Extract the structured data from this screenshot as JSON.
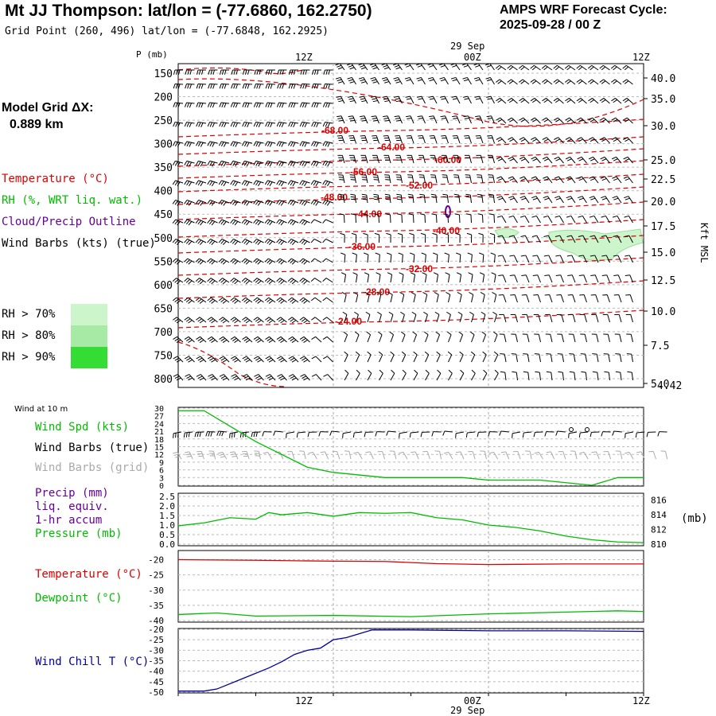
{
  "header": {
    "title": "Mt JJ Thompson:  lat/lon = (-77.6860, 162.2750)",
    "grid_point": "Grid Point (260, 496) lat/lon = (-77.6848, 162.2925)",
    "cycle_line1": "AMPS WRF Forecast Cycle:",
    "cycle_line2": "2025-09-28 / 00  Z"
  },
  "side": {
    "model_grid_label": "Model Grid ΔX:",
    "model_grid_value": "0.889 km",
    "temp_label": "Temperature (°C)",
    "rh_label": "RH (%, WRT liq. wat.)",
    "cloud_label": "Cloud/Precip Outline",
    "wind_label": "Wind Barbs (kts) (true)",
    "rh70": "RH > 70%",
    "rh80": "RH > 80%",
    "rh90": "RH > 90%",
    "wind10m": "Wind at 10 m",
    "wind_spd": "Wind Spd (kts)",
    "barbs_true": "Wind Barbs (true)",
    "barbs_grid": "Wind Barbs (grid)",
    "precip1": "Precip (mm)",
    "precip2": "liq. equiv.",
    "precip3": "1-hr accum",
    "pressure": "Pressure (mb)",
    "temp2": "Temperature (°C)",
    "dewpoint": "Dewpoint (°C)",
    "windchill": "Wind Chill T (°C)",
    "mb_unit": "(mb)",
    "kft_msl": "Kft MSL",
    "p_mb": "P (mb)"
  },
  "colors": {
    "temp": "#dd0000",
    "rh": "#00bb00",
    "cloud": "#660099",
    "windchill": "#000099",
    "rh70": "#ccf5cc",
    "rh80": "#a6eaa6",
    "rh90": "#33dd33",
    "grid_barbs": "#aaaaaa"
  },
  "time_axis": {
    "top_date": "29 Sep",
    "ticks": [
      "12Z",
      "00Z",
      "12Z"
    ],
    "bottom_date": "29 Sep"
  },
  "chart_data": [
    {
      "type": "line",
      "title": "",
      "panel": "upper-air cross section",
      "ylabel": "P (mb)",
      "y2label": "Kft MSL",
      "pressure_ticks": [
        "150",
        "200",
        "250",
        "300",
        "350",
        "400",
        "450",
        "500",
        "550",
        "600",
        "650",
        "700",
        "750",
        "800"
      ],
      "height_ticks": [
        "40.0",
        "35.0",
        "30.0",
        "25.0",
        "22.5",
        "20.0",
        "17.5",
        "15.0",
        "12.5",
        "10.0",
        "7.5",
        "5.0"
      ],
      "corner_label": "4.42",
      "temperature_contour_labels": [
        "-68.00",
        "-64.00",
        "-60.00",
        "-56.00",
        "-52.00",
        "-48.00",
        "-44.00",
        "-40.00",
        "-36.00",
        "-32.00",
        "-28.00",
        "-24.00"
      ]
    },
    {
      "type": "line",
      "title": "",
      "panel": "10 m wind speed",
      "ylabel": "Wind Spd (kts)",
      "yticks": [
        "30",
        "27",
        "24",
        "21",
        "18",
        "15",
        "12",
        "9",
        "6",
        "3",
        "0"
      ],
      "ylim": [
        0,
        30
      ],
      "series": [
        {
          "name": "Wind Spd (kts)",
          "x": [
            0,
            2,
            4,
            6,
            8,
            10,
            12,
            14,
            16,
            18,
            20,
            22,
            24,
            26,
            28,
            30,
            32,
            34,
            36
          ],
          "values": [
            29,
            29,
            23,
            17,
            12,
            7,
            5,
            4,
            3,
            3,
            3,
            3,
            2,
            2,
            2,
            1,
            0,
            3,
            3
          ]
        }
      ]
    },
    {
      "type": "line",
      "title": "",
      "panel": "precip and pressure",
      "ylabel": "Precip (mm)",
      "yticks": [
        "2.5",
        "2.0",
        "1.5",
        "1.0",
        "0.5",
        "0.0"
      ],
      "y2ticks": [
        "816",
        "814",
        "812",
        "810"
      ],
      "ylim": [
        0,
        2.5
      ],
      "y2lim": [
        810,
        816.5
      ],
      "series": [
        {
          "name": "Pressure (mb)",
          "x": [
            0,
            2,
            4,
            6,
            7,
            8,
            10,
            12,
            14,
            16,
            18,
            20,
            22,
            24,
            26,
            28,
            30,
            32,
            34,
            36
          ],
          "values": [
            812.5,
            812.9,
            813.6,
            813.4,
            814.3,
            814.0,
            814.3,
            813.8,
            814.3,
            814.2,
            814.3,
            813.6,
            813.3,
            812.6,
            812.3,
            811.8,
            811.1,
            810.6,
            810.3,
            810.2
          ]
        }
      ]
    },
    {
      "type": "line",
      "title": "",
      "panel": "temperature and dewpoint",
      "yticks": [
        "-20",
        "-25",
        "-30",
        "-35",
        "-40"
      ],
      "ylim": [
        -40.5,
        -17
      ],
      "series": [
        {
          "name": "Temperature (°C)",
          "x": [
            0,
            6,
            12,
            16,
            20,
            24,
            30,
            36
          ],
          "values": [
            -20.0,
            -20.2,
            -20.5,
            -20.6,
            -21.3,
            -21.6,
            -21.4,
            -21.4
          ]
        },
        {
          "name": "Dewpoint (°C)",
          "x": [
            0,
            3,
            6,
            12,
            18,
            24,
            30,
            34,
            36
          ],
          "values": [
            -38.0,
            -37.5,
            -38.5,
            -38.3,
            -38.7,
            -37.8,
            -37.2,
            -36.8,
            -37.0
          ]
        }
      ]
    },
    {
      "type": "line",
      "title": "",
      "panel": "wind chill",
      "yticks": [
        "-20",
        "-25",
        "-30",
        "-35",
        "-40",
        "-45",
        "-50"
      ],
      "ylim": [
        -50,
        -20
      ],
      "series": [
        {
          "name": "Wind Chill T (°C)",
          "x": [
            0,
            2,
            3,
            5,
            7,
            8,
            9,
            10,
            11,
            12,
            13,
            15,
            18,
            24,
            30,
            36
          ],
          "values": [
            -49.5,
            -49.5,
            -48.5,
            -43.5,
            -38.5,
            -35.5,
            -32,
            -30,
            -29,
            -25,
            -24,
            -20.3,
            -20.3,
            -20.7,
            -20.7,
            -21.0
          ]
        }
      ]
    }
  ]
}
